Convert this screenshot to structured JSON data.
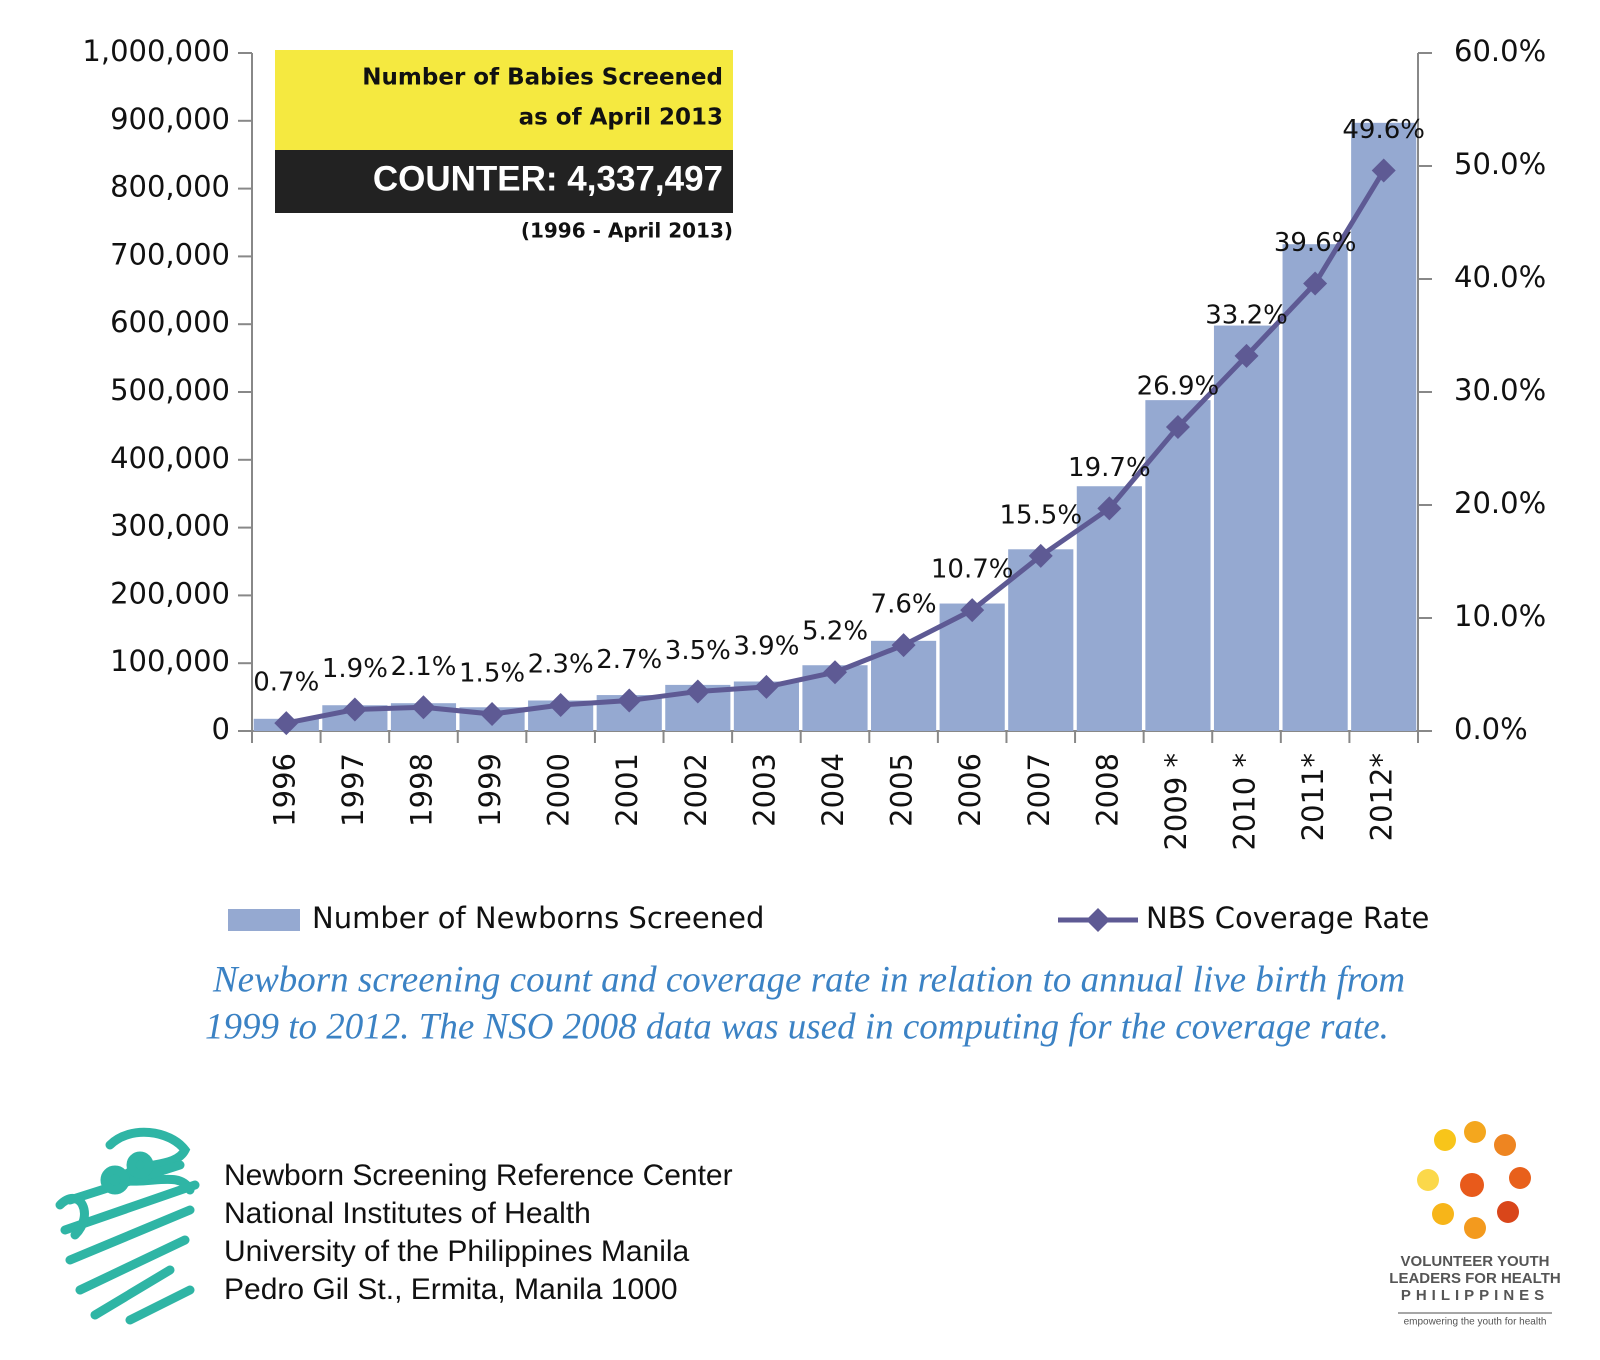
{
  "chart_data": {
    "type": "combo",
    "categories": [
      "1996",
      "1997",
      "1998",
      "1999",
      "2000",
      "2001",
      "2002",
      "2003",
      "2004",
      "2005",
      "2006",
      "2007",
      "2008",
      "2009 *",
      "2010 *",
      "2011*",
      "2012*"
    ],
    "series": [
      {
        "name": "Number of Newborns Screened",
        "type": "bar",
        "color": "#95a9d1",
        "values": [
          18000,
          38000,
          41000,
          35000,
          45000,
          53000,
          68000,
          73000,
          97000,
          133000,
          188000,
          268000,
          361000,
          488000,
          598000,
          718000,
          897000
        ]
      },
      {
        "name": "NBS Coverage Rate",
        "type": "line",
        "axis": "y2",
        "color": "#5e5a94",
        "values": [
          0.7,
          1.9,
          2.1,
          1.5,
          2.3,
          2.7,
          3.5,
          3.9,
          5.2,
          7.6,
          10.7,
          15.5,
          19.7,
          26.9,
          33.2,
          39.6,
          49.6
        ],
        "value_labels": [
          "0.7%",
          "1.9%",
          "2.1%",
          "1.5%",
          "2.3%",
          "2.7%",
          "3.5%",
          "3.9%",
          "5.2%",
          "7.6%",
          "10.7%",
          "15.5%",
          "19.7%",
          "26.9%",
          "33.2%",
          "39.6%",
          "49.6%"
        ]
      }
    ],
    "ylim": [
      0,
      1000000
    ],
    "yticks": [
      0,
      {
        "value": 100000,
        "label": "100,000"
      },
      {
        "value": 200000,
        "label": "200,000"
      },
      {
        "value": 300000,
        "label": "300,000"
      },
      {
        "value": 400000,
        "label": "400,000"
      },
      {
        "value": 500000,
        "label": "500,000"
      },
      {
        "value": 600000,
        "label": "600,000"
      },
      {
        "value": 700000,
        "label": "700,000"
      },
      {
        "value": 800000,
        "label": "800,000"
      },
      {
        "value": 900000,
        "label": "900,000"
      },
      {
        "value": 1000000,
        "label": "1,000,000"
      }
    ],
    "y2lim": [
      0,
      60
    ],
    "y2ticks": [
      {
        "value": 0,
        "label": "0.0%"
      },
      {
        "value": 10,
        "label": "10.0%"
      },
      {
        "value": 20,
        "label": "20.0%"
      },
      {
        "value": 30,
        "label": "30.0%"
      },
      {
        "value": 40,
        "label": "40.0%"
      },
      {
        "value": 50,
        "label": "50.0%"
      },
      {
        "value": 60,
        "label": "60.0%"
      }
    ],
    "grid": false,
    "annotations": [
      "Number of Babies Screened",
      "as of April 2013",
      "COUNTER: 4,337,497",
      "(1996 - April 2013)"
    ],
    "caption": [
      "Newborn screening count and coverage rate in relation to annual live birth from",
      "1999 to 2012.  The NSO 2008 data was used in computing for the coverage rate."
    ],
    "footer": [
      "Newborn Screening Reference Center",
      "National Institutes of Health",
      "University of the Philippines Manila",
      "Pedro Gil St., Ermita, Manila 1000"
    ],
    "logo_text": [
      "VOLUNTEER YOUTH",
      "LEADERS FOR HEALTH",
      "PHILIPPINES",
      "empowering the youth for health"
    ]
  }
}
